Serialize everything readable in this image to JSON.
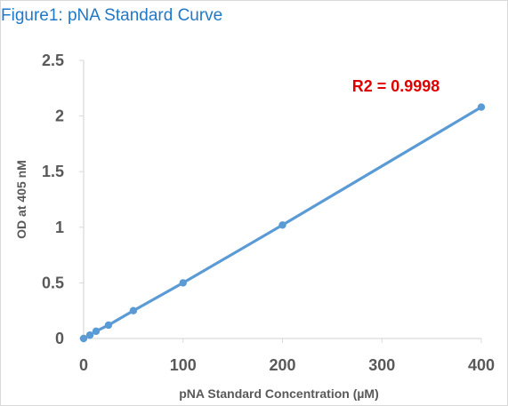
{
  "figure": {
    "title": "Figure1: pNA Standard Curve"
  },
  "chart_data": {
    "type": "scatter",
    "title": "",
    "xlabel": "pNA Standard Concentration (µM)",
    "ylabel": "OD at 405 nM",
    "xlim": [
      0,
      400
    ],
    "ylim": [
      0,
      2.5
    ],
    "x_ticks": [
      0,
      100,
      200,
      300,
      400
    ],
    "x_tick_labels": [
      "0",
      "100",
      "200",
      "300",
      "400"
    ],
    "y_ticks": [
      0,
      0.5,
      1,
      1.5,
      2,
      2.5
    ],
    "y_tick_labels": [
      "0",
      "0.5",
      "1",
      "1.5",
      "2",
      "2.5"
    ],
    "grid": false,
    "legend": "none",
    "series": [
      {
        "x": [
          0,
          6.25,
          12.5,
          25,
          50,
          100,
          200,
          400
        ],
        "y": [
          0,
          0.03,
          0.065,
          0.12,
          0.25,
          0.5,
          1.02,
          2.08
        ],
        "color": "#5b9bd5",
        "connected": true,
        "markers": true
      }
    ],
    "annotations": [
      {
        "text": "R2 = 0.9998",
        "x": 270,
        "y": 2.22,
        "color": "#e00000"
      }
    ]
  }
}
